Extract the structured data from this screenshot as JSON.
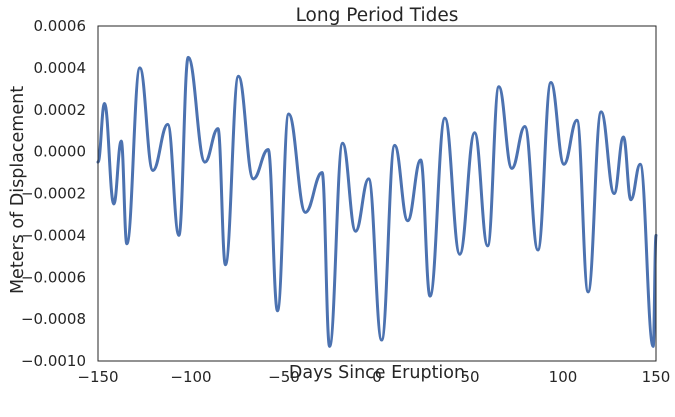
{
  "chart_data": {
    "type": "line",
    "title": "Long Period Tides",
    "xlabel": "Days Since Eruption",
    "ylabel": "Meters of Displacement",
    "xlim": [
      -150,
      150
    ],
    "ylim": [
      -0.001,
      0.0006
    ],
    "xticks": [
      -150,
      -100,
      -50,
      0,
      50,
      100,
      150
    ],
    "xtick_labels": [
      "−150",
      "−100",
      "−50",
      "0",
      "50",
      "100",
      "150"
    ],
    "yticks": [
      -0.001,
      -0.0008,
      -0.0006,
      -0.0004,
      -0.0002,
      0.0,
      0.0002,
      0.0004,
      0.0006
    ],
    "ytick_labels": [
      "−0.0010",
      "−0.0008",
      "−0.0006",
      "−0.0004",
      "−0.0002",
      "0.0000",
      "0.0002",
      "0.0004",
      "0.0006"
    ],
    "grid": false,
    "line_color": "#4c72b0",
    "series": [
      {
        "x": [
          -150,
          -146.5,
          -141.5,
          -137.5,
          -134.5,
          -127.5,
          -120.5,
          -112.5,
          -106.5,
          -101.5,
          -92.5,
          -85.5,
          -81.5,
          -74.5,
          -66.5,
          -58.5,
          -53.5,
          -47.5,
          -38.5,
          -29.5,
          -25.5,
          -18.5,
          -11.5,
          -4.5,
          2.5,
          9.5,
          16.5,
          23.5,
          28.5,
          36.5,
          44.5,
          52.5,
          59.5,
          65.5,
          72.5,
          79.5,
          86.5,
          93.5,
          100.5,
          107.5,
          113.5,
          120.5,
          127.5,
          132.5,
          136.5,
          141.5,
          148.5,
          150
        ],
        "y": [
          -5e-05,
          0.00023,
          -0.00025,
          5e-05,
          -0.00044,
          0.0004,
          -9e-05,
          0.00013,
          -0.0004,
          0.00045,
          -5e-05,
          0.00011,
          -0.00054,
          0.00036,
          -0.00013,
          1e-05,
          -0.00076,
          0.00018,
          -0.00029,
          -0.0001,
          -0.00093,
          4e-05,
          -0.00038,
          -0.00013,
          -0.0009,
          3e-05,
          -0.00033,
          -4e-05,
          -0.00069,
          0.00016,
          -0.00049,
          9e-05,
          -0.00045,
          0.00031,
          -8e-05,
          0.00012,
          -0.00047,
          0.00033,
          -6e-05,
          0.00015,
          -0.00067,
          0.00019,
          -0.0002,
          7e-05,
          -0.00023,
          -6e-05,
          -0.00093,
          -0.0004
        ]
      }
    ]
  }
}
